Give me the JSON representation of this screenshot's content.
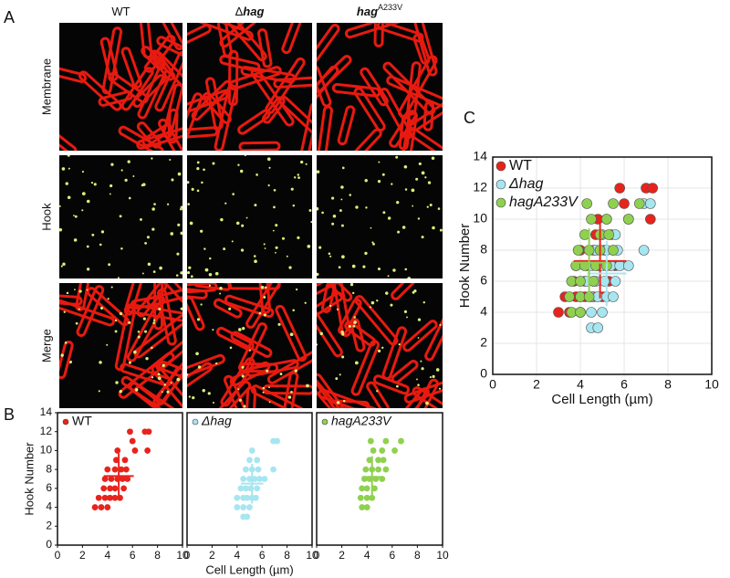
{
  "figure": {
    "panel_labels": [
      "A",
      "B",
      "C"
    ],
    "column_labels": [
      {
        "text": "WT"
      },
      {
        "prefix": "Δ",
        "italic": "hag"
      },
      {
        "italic": "hag",
        "sup": "A233V"
      }
    ],
    "row_labels": [
      "Membrane",
      "Hook",
      "Merge"
    ]
  },
  "chart_data": [
    {
      "type": "scatter",
      "xlim": [
        0,
        10
      ],
      "ylim": [
        0,
        14
      ],
      "xticks": [
        0,
        2,
        4,
        6,
        8,
        10
      ],
      "yticks": [
        0,
        2,
        4,
        6,
        8,
        10,
        12,
        14
      ],
      "y_label": "Hook Number",
      "series": [
        {
          "name": "WT",
          "color": "#e8231c",
          "x": [
            3,
            3.5,
            4,
            3.3,
            3.8,
            4.2,
            4.6,
            5,
            3.7,
            4.2,
            4.6,
            5.3,
            3.8,
            4.3,
            4.8,
            5.2,
            5.6,
            4,
            4.6,
            5.1,
            5.5,
            4.7,
            5.4,
            4.8,
            6.2,
            7.2,
            6,
            5.8,
            7,
            7.3
          ],
          "values": [
            4,
            4,
            4,
            5,
            5,
            5,
            5,
            5,
            6,
            6,
            6,
            6,
            7,
            7,
            7,
            7,
            7,
            8,
            8,
            8,
            8,
            9,
            9,
            10,
            10,
            10,
            11,
            12,
            12,
            12
          ],
          "mean": {
            "x": 4.9,
            "y": 7.3,
            "x_sd": 1.2,
            "y_sd": 2.4
          }
        }
      ]
    },
    {
      "type": "scatter",
      "xlim": [
        0,
        10
      ],
      "ylim": [
        0,
        14
      ],
      "xticks": [
        0,
        2,
        4,
        6,
        8,
        10
      ],
      "x_label": "Cell Length (µm)",
      "series": [
        {
          "name": "Δhag",
          "color": "#a6e6f0",
          "x": [
            4.5,
            4.8,
            4,
            4.5,
            5,
            4,
            4.5,
            4.8,
            5.2,
            5.5,
            4.3,
            4.7,
            5.1,
            5.6,
            4.5,
            5,
            5.4,
            5.8,
            6.2,
            4.7,
            5.2,
            5.7,
            6.9,
            5,
            5.6,
            5.2,
            6.9,
            7.2
          ],
          "values": [
            3,
            3,
            4,
            4,
            4,
            5,
            5,
            5,
            5,
            5,
            6,
            6,
            6,
            6,
            7,
            7,
            7,
            7,
            7,
            8,
            8,
            8,
            8,
            9,
            9,
            10,
            11,
            11
          ],
          "mean": {
            "x": 5.2,
            "y": 6.5,
            "x_sd": 0.9,
            "y_sd": 2.1
          }
        }
      ]
    },
    {
      "type": "scatter",
      "xlim": [
        0,
        10
      ],
      "ylim": [
        0,
        14
      ],
      "xticks": [
        0,
        2,
        4,
        6,
        8,
        10
      ],
      "series": [
        {
          "name": "hagA233V",
          "color": "#8fd14f",
          "x": [
            3.6,
            4,
            3.5,
            4,
            4.4,
            3.6,
            4,
            4.6,
            3.8,
            4.2,
            4.7,
            5.2,
            3.9,
            4.4,
            4.9,
            5.5,
            4.2,
            4.9,
            5.3,
            4.5,
            5.2,
            6.2,
            4.3,
            5.5,
            6.7
          ],
          "values": [
            4,
            4,
            5,
            5,
            5,
            6,
            6,
            6,
            7,
            7,
            7,
            7,
            8,
            8,
            8,
            8,
            9,
            9,
            9,
            10,
            10,
            10,
            11,
            11,
            11
          ],
          "mean": {
            "x": 4.4,
            "y": 7.2,
            "x_sd": 0.8,
            "y_sd": 2.2
          }
        }
      ]
    },
    {
      "type": "scatter",
      "xlim": [
        0,
        10
      ],
      "ylim": [
        0,
        14
      ],
      "xticks": [
        0,
        2,
        4,
        6,
        8,
        10
      ],
      "yticks": [
        0,
        2,
        4,
        6,
        8,
        10,
        12,
        14
      ],
      "grid": true,
      "x_label": "Cell Length (µm)",
      "y_label": "Hook Number",
      "series": [
        {
          "name": "WT",
          "color": "#e8231c",
          "x": [
            3,
            3.5,
            4,
            3.3,
            3.8,
            4.2,
            4.6,
            5,
            3.7,
            4.2,
            4.6,
            5.3,
            3.8,
            4.3,
            4.8,
            5.2,
            5.6,
            4,
            4.6,
            5.1,
            5.5,
            4.7,
            5.4,
            4.8,
            6.2,
            7.2,
            6,
            5.8,
            7,
            7.3
          ],
          "values": [
            4,
            4,
            4,
            5,
            5,
            5,
            5,
            5,
            6,
            6,
            6,
            6,
            7,
            7,
            7,
            7,
            7,
            8,
            8,
            8,
            8,
            9,
            9,
            10,
            10,
            10,
            11,
            12,
            12,
            12
          ],
          "mean": {
            "x": 4.9,
            "y": 7.3,
            "x_sd": 1.2,
            "y_sd": 2.4
          }
        },
        {
          "name": "Δhag",
          "color": "#a6e6f0",
          "x": [
            4.5,
            4.8,
            4,
            4.5,
            5,
            4,
            4.5,
            4.8,
            5.2,
            5.5,
            4.3,
            4.7,
            5.1,
            5.6,
            4.5,
            5,
            5.4,
            5.8,
            6.2,
            4.7,
            5.2,
            5.7,
            6.9,
            5,
            5.6,
            5.2,
            6.9,
            7.2
          ],
          "values": [
            3,
            3,
            4,
            4,
            4,
            5,
            5,
            5,
            5,
            5,
            6,
            6,
            6,
            6,
            7,
            7,
            7,
            7,
            7,
            8,
            8,
            8,
            8,
            9,
            9,
            10,
            11,
            11
          ],
          "mean": {
            "x": 5.2,
            "y": 6.5,
            "x_sd": 0.9,
            "y_sd": 2.1
          }
        },
        {
          "name": "hagA233V",
          "color": "#8fd14f",
          "x": [
            3.6,
            4,
            3.5,
            4,
            4.4,
            3.6,
            4,
            4.6,
            3.8,
            4.2,
            4.7,
            5.2,
            3.9,
            4.4,
            4.9,
            5.5,
            4.2,
            4.9,
            5.3,
            4.5,
            5.2,
            6.2,
            4.3,
            5.5,
            6.7
          ],
          "values": [
            4,
            4,
            5,
            5,
            5,
            6,
            6,
            6,
            7,
            7,
            7,
            7,
            8,
            8,
            8,
            8,
            9,
            9,
            9,
            10,
            10,
            10,
            11,
            11,
            11
          ],
          "mean": {
            "x": 4.4,
            "y": 7.2,
            "x_sd": 0.8,
            "y_sd": 2.2
          }
        }
      ]
    }
  ]
}
